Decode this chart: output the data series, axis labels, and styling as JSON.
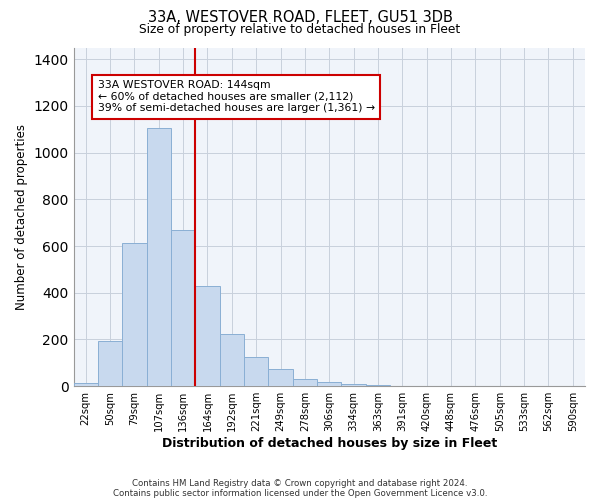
{
  "title1": "33A, WESTOVER ROAD, FLEET, GU51 3DB",
  "title2": "Size of property relative to detached houses in Fleet",
  "xlabel": "Distribution of detached houses by size in Fleet",
  "ylabel": "Number of detached properties",
  "bar_labels": [
    "22sqm",
    "50sqm",
    "79sqm",
    "107sqm",
    "136sqm",
    "164sqm",
    "192sqm",
    "221sqm",
    "249sqm",
    "278sqm",
    "306sqm",
    "334sqm",
    "363sqm",
    "391sqm",
    "420sqm",
    "448sqm",
    "476sqm",
    "505sqm",
    "533sqm",
    "562sqm",
    "590sqm"
  ],
  "bar_values": [
    15,
    195,
    615,
    1105,
    670,
    430,
    225,
    125,
    75,
    30,
    20,
    10,
    5,
    2,
    1,
    0,
    0,
    0,
    0,
    0,
    0
  ],
  "bar_color": "#c8d9ee",
  "bar_edge_color": "#8aafd4",
  "vline_x": 4.5,
  "vline_color": "#cc0000",
  "annotation_title": "33A WESTOVER ROAD: 144sqm",
  "annotation_line1": "← 60% of detached houses are smaller (2,112)",
  "annotation_line2": "39% of semi-detached houses are larger (1,361) →",
  "annotation_box_color": "#ffffff",
  "annotation_box_edge": "#cc0000",
  "ylim": [
    0,
    1450
  ],
  "footnote1": "Contains HM Land Registry data © Crown copyright and database right 2024.",
  "footnote2": "Contains public sector information licensed under the Open Government Licence v3.0."
}
